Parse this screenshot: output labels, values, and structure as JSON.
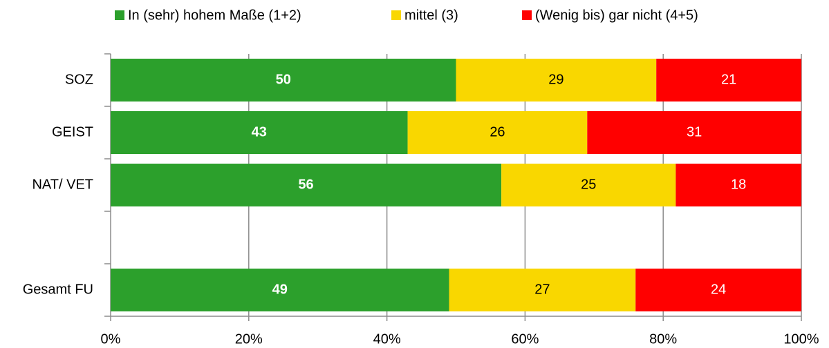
{
  "chart_data": {
    "type": "bar",
    "orientation": "horizontal",
    "stacked": "percent",
    "categories": [
      "SOZ",
      "GEIST",
      "NAT/ VET",
      null,
      "Gesamt FU"
    ],
    "series": [
      {
        "name": "In (sehr) hohem Maße (1+2)",
        "color": "#2ca02c",
        "label_color": "#ffffff",
        "label_bold": true,
        "values": [
          50,
          43,
          56,
          null,
          49
        ]
      },
      {
        "name": "mittel (3)",
        "color": "#f9d700",
        "label_color": "#000000",
        "label_bold": false,
        "values": [
          29,
          26,
          25,
          null,
          27
        ]
      },
      {
        "name": "(Wenig bis) gar nicht (4+5)",
        "color": "#ff0000",
        "label_color": "#ffffff",
        "label_bold": false,
        "values": [
          21,
          31,
          18,
          null,
          24
        ]
      }
    ],
    "xlim": [
      0,
      100
    ],
    "xticks": [
      {
        "value": 0,
        "label": "0%"
      },
      {
        "value": 20,
        "label": "20%"
      },
      {
        "value": 40,
        "label": "40%"
      },
      {
        "value": 60,
        "label": "60%"
      },
      {
        "value": 80,
        "label": "80%"
      },
      {
        "value": 100,
        "label": "100%"
      }
    ],
    "grid": true,
    "legend": "top"
  }
}
